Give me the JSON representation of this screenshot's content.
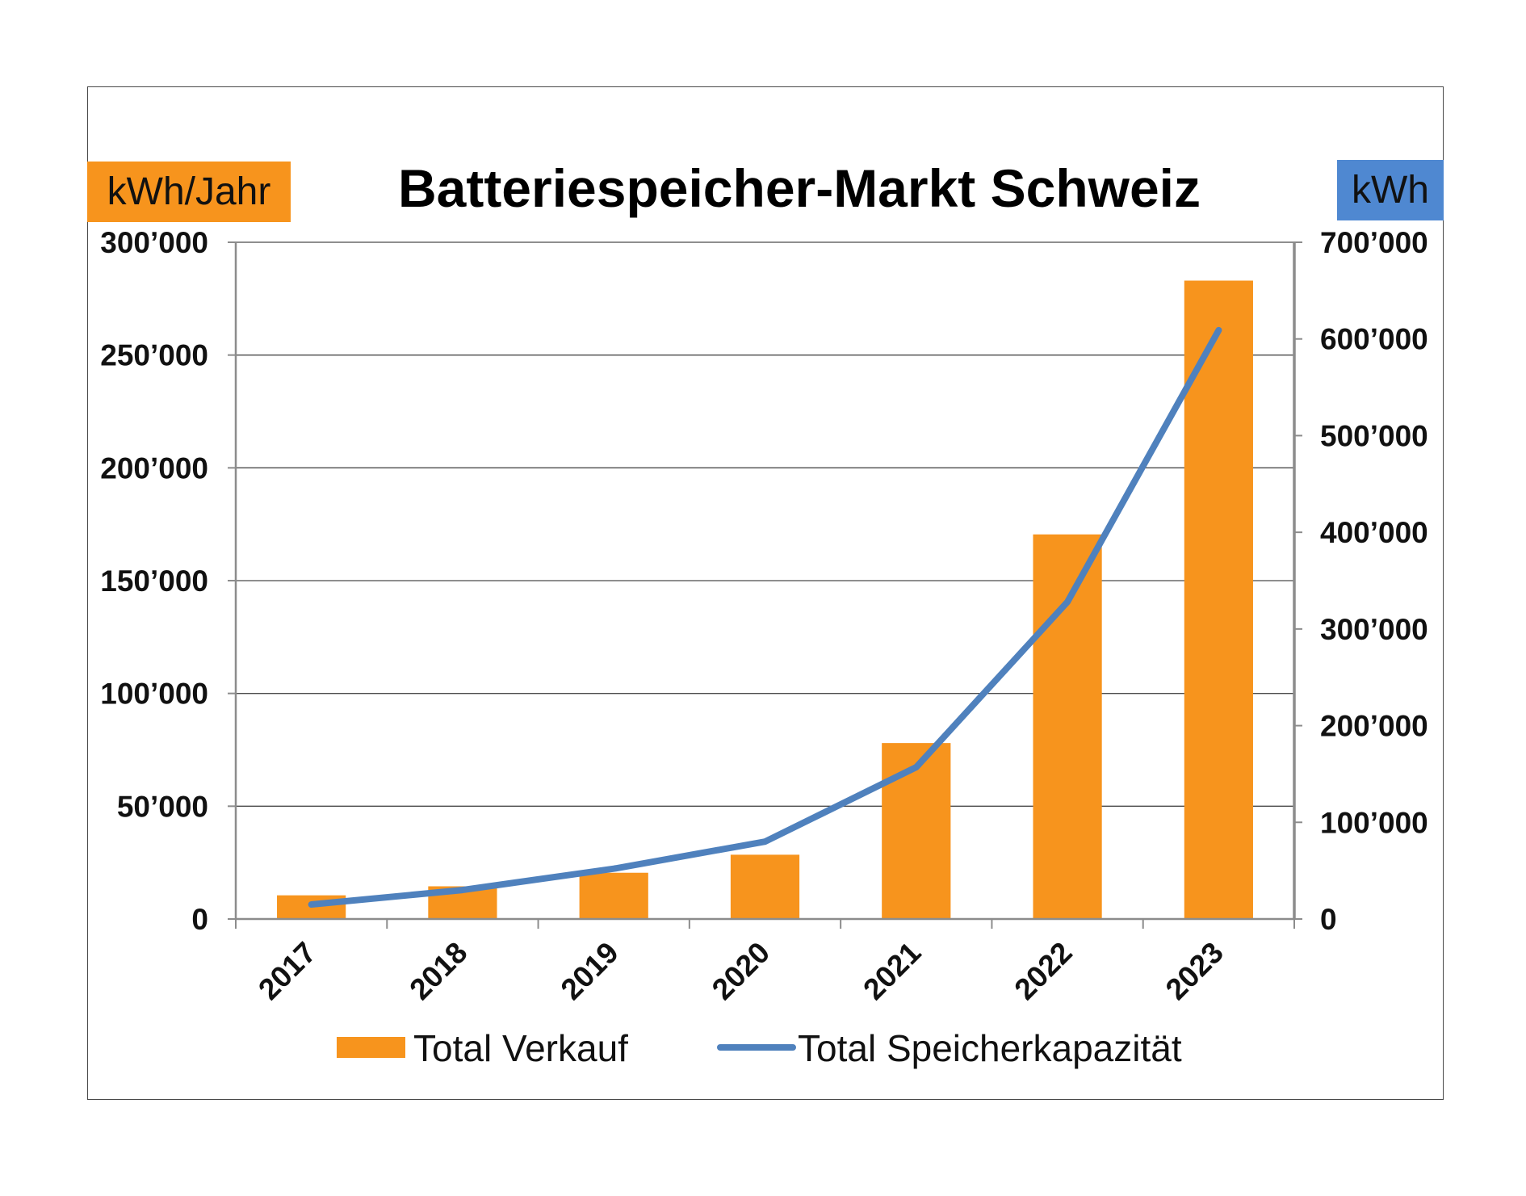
{
  "colors": {
    "bar": "#f7941d",
    "line": "#4f81bd",
    "unit_left_bg": "#f7941d",
    "unit_right_bg": "#4f88d1",
    "grid": "#4a4a4a",
    "axis": "#8c8c8c"
  },
  "chart_data": {
    "type": "bar",
    "title": "Batteriespeicher-Markt Schweiz",
    "ylabel_left": "kWh/Jahr",
    "ylabel_right": "kWh",
    "categories": [
      "2017",
      "2018",
      "2019",
      "2020",
      "2021",
      "2022",
      "2023"
    ],
    "ylim_left": [
      0,
      300000
    ],
    "ylim_right": [
      0,
      700000
    ],
    "yticks_left": [
      "0",
      "50’000",
      "100’000",
      "150’000",
      "200’000",
      "250’000",
      "300’000"
    ],
    "yticks_right": [
      "0",
      "100’000",
      "200’000",
      "300’000",
      "400’000",
      "500’000",
      "600’000",
      "700’000"
    ],
    "grid": true,
    "legend_position": "bottom",
    "series": [
      {
        "name": "Total Verkauf",
        "type": "bar",
        "axis": "left",
        "values": [
          10500,
          14500,
          20500,
          28500,
          78000,
          170500,
          283000
        ]
      },
      {
        "name": "Total Speicherkapazität",
        "type": "line",
        "axis": "right",
        "values": [
          15000,
          30000,
          52000,
          80000,
          157000,
          328000,
          609000
        ]
      }
    ]
  }
}
